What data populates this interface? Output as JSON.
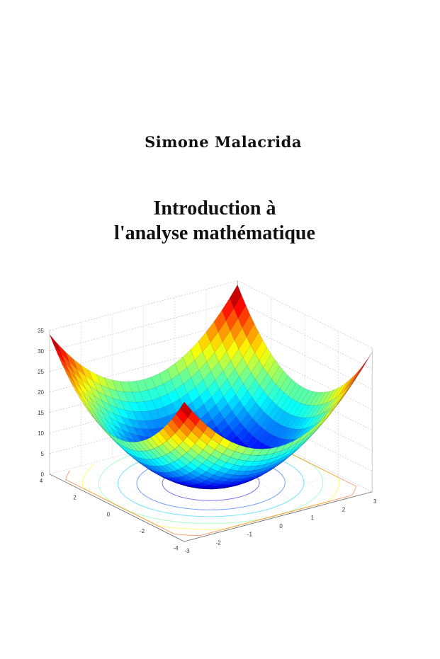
{
  "cover": {
    "author": "Simone Malacrida",
    "title_line1": "Introduction à",
    "title_line2": "l'analyse mathématique"
  },
  "chart_data": {
    "type": "surface",
    "title": "",
    "xlabel": "",
    "ylabel": "",
    "zlabel": "",
    "x_ticks": [
      "4",
      "2",
      "0",
      "-2",
      "-4"
    ],
    "y_ticks": [
      "-3",
      "-2",
      "-1",
      "0",
      "1",
      "2",
      "3"
    ],
    "z_ticks": [
      "0",
      "5",
      "10",
      "15",
      "20",
      "25",
      "30",
      "35"
    ],
    "xlim": [
      -4,
      4
    ],
    "ylim": [
      -3,
      3
    ],
    "zlim": [
      0,
      35
    ],
    "colormap": "jet",
    "contours_on_floor": true,
    "grid": true
  }
}
